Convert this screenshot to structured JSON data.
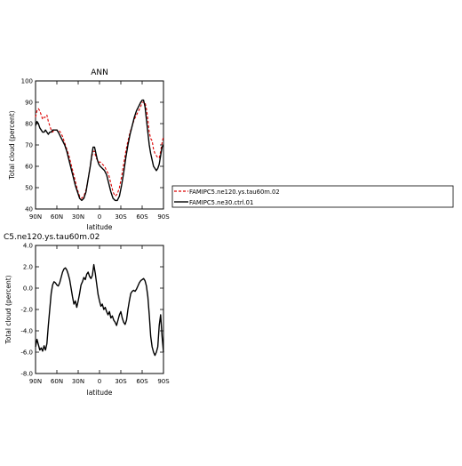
{
  "chart_data": [
    {
      "type": "line",
      "title": "ANN",
      "xlabel": "latitude",
      "ylabel": "Total cloud (percent)",
      "xlim": [
        90,
        -90
      ],
      "ylim": [
        40,
        100
      ],
      "xtick_values": [
        90,
        60,
        30,
        0,
        -30,
        -60,
        -90
      ],
      "xtick_labels": [
        "90N",
        "60N",
        "30N",
        "0",
        "30S",
        "60S",
        "90S"
      ],
      "ytick_values": [
        40,
        50,
        60,
        70,
        80,
        90,
        100
      ],
      "ytick_labels": [
        "40",
        "50",
        "60",
        "70",
        "80",
        "90",
        "100"
      ],
      "legend_position": "right",
      "series": [
        {
          "name": "FAMIPC5.ne120.ys.tau60m.02",
          "color": "#dd0000",
          "style": "dashed",
          "x": [
            90,
            88,
            86,
            84,
            82,
            80,
            78,
            76,
            74,
            72,
            70,
            68,
            66,
            64,
            62,
            60,
            58,
            55,
            52,
            49,
            46,
            43,
            40,
            37,
            34,
            31,
            28,
            25,
            22,
            19,
            16,
            13,
            11,
            9,
            7,
            5,
            3,
            1,
            -1,
            -4,
            -7,
            -10,
            -13,
            -16,
            -19,
            -22,
            -25,
            -28,
            -31,
            -34,
            -37,
            -40,
            -43,
            -46,
            -49,
            -52,
            -55,
            -58,
            -60,
            -62,
            -64,
            -66,
            -68,
            -70,
            -72,
            -74,
            -76,
            -78,
            -80,
            -82,
            -84,
            -86,
            -88,
            -90
          ],
          "y": [
            83,
            86,
            87,
            86,
            84,
            82,
            83,
            83,
            84,
            81,
            79,
            77,
            76,
            77,
            77,
            77,
            77,
            76,
            74,
            71,
            68,
            65,
            61,
            57,
            53,
            49,
            46,
            45,
            46,
            49,
            54,
            60,
            64,
            67,
            67,
            64,
            63,
            62,
            62,
            61,
            60,
            58,
            56,
            52,
            48,
            46,
            47,
            50,
            55,
            61,
            67,
            72,
            76,
            79,
            82,
            84,
            86,
            88,
            90,
            90,
            90,
            87,
            82,
            76,
            73,
            72,
            68,
            66,
            65,
            64,
            64,
            67,
            71,
            74
          ]
        },
        {
          "name": "FAMIPC5.ne30.ctrl.01",
          "color": "#000000",
          "style": "solid",
          "x": [
            90,
            88,
            86,
            84,
            82,
            80,
            78,
            76,
            74,
            72,
            70,
            68,
            66,
            64,
            62,
            60,
            58,
            55,
            52,
            49,
            46,
            43,
            40,
            37,
            34,
            31,
            28,
            25,
            22,
            19,
            16,
            13,
            11,
            9,
            7,
            5,
            3,
            1,
            -1,
            -4,
            -7,
            -10,
            -13,
            -16,
            -19,
            -22,
            -25,
            -28,
            -31,
            -34,
            -37,
            -40,
            -43,
            -46,
            -49,
            -52,
            -55,
            -58,
            -60,
            -62,
            -64,
            -66,
            -68,
            -70,
            -72,
            -74,
            -76,
            -78,
            -80,
            -82,
            -84,
            -86,
            -88,
            -90
          ],
          "y": [
            79,
            81,
            80,
            78,
            77,
            76,
            76,
            77,
            76,
            75,
            76,
            76,
            77,
            77,
            77,
            77,
            76,
            74,
            72,
            70,
            67,
            63,
            59,
            55,
            51,
            48,
            45,
            44,
            45,
            48,
            54,
            60,
            65,
            69,
            69,
            66,
            63,
            61,
            60,
            59,
            58,
            56,
            52,
            48,
            45,
            44,
            44,
            46,
            51,
            57,
            64,
            70,
            75,
            79,
            83,
            86,
            88,
            90,
            91,
            91,
            88,
            82,
            76,
            70,
            66,
            63,
            60,
            59,
            58,
            59,
            61,
            65,
            69,
            70
          ]
        }
      ]
    },
    {
      "type": "line",
      "title": "C5.ne120.ys.tau60m.02",
      "xlabel": "latitude",
      "ylabel": "Total cloud (percent)",
      "xlim": [
        90,
        -90
      ],
      "ylim": [
        -8,
        4
      ],
      "xtick_values": [
        90,
        60,
        30,
        0,
        -30,
        -60,
        -90
      ],
      "xtick_labels": [
        "90N",
        "60N",
        "30N",
        "0",
        "30S",
        "60S",
        "90S"
      ],
      "ytick_values": [
        -8,
        -6,
        -4,
        -2,
        0,
        2,
        4
      ],
      "ytick_labels": [
        "-8.0",
        "-6.0",
        "-4.0",
        "-2.0",
        "0.0",
        "2.0",
        "4.0"
      ],
      "series": [
        {
          "color": "#000000",
          "style": "solid",
          "x": [
            90,
            88,
            86,
            84,
            82,
            80,
            78,
            76,
            74,
            72,
            70,
            68,
            66,
            64,
            62,
            60,
            58,
            56,
            54,
            52,
            50,
            48,
            46,
            44,
            42,
            40,
            38,
            36,
            34,
            32,
            30,
            28,
            26,
            24,
            22,
            20,
            18,
            16,
            14,
            12,
            10,
            8,
            6,
            4,
            2,
            0,
            -2,
            -4,
            -6,
            -8,
            -10,
            -12,
            -14,
            -16,
            -18,
            -20,
            -22,
            -24,
            -26,
            -28,
            -30,
            -32,
            -34,
            -36,
            -38,
            -40,
            -42,
            -44,
            -46,
            -48,
            -50,
            -52,
            -54,
            -56,
            -58,
            -60,
            -62,
            -64,
            -66,
            -68,
            -70,
            -72,
            -74,
            -76,
            -78,
            -80,
            -82,
            -84,
            -86,
            -88,
            -90
          ],
          "y": [
            -5.5,
            -4.8,
            -5.3,
            -5.8,
            -5.6,
            -5.9,
            -5.4,
            -5.8,
            -5.2,
            -3.5,
            -2.0,
            -0.5,
            0.3,
            0.6,
            0.5,
            0.3,
            0.2,
            0.5,
            1.0,
            1.5,
            1.8,
            1.9,
            1.7,
            1.3,
            0.8,
            0.0,
            -0.8,
            -1.5,
            -1.2,
            -1.8,
            -1.2,
            -0.5,
            0.3,
            0.6,
            1.0,
            0.8,
            1.3,
            1.5,
            1.1,
            0.9,
            1.2,
            2.2,
            1.4,
            0.4,
            -0.6,
            -1.2,
            -1.7,
            -1.5,
            -2.0,
            -1.8,
            -2.2,
            -2.5,
            -2.2,
            -2.8,
            -2.6,
            -3.0,
            -3.2,
            -3.5,
            -3.0,
            -2.5,
            -2.2,
            -2.8,
            -3.2,
            -3.4,
            -3.0,
            -2.0,
            -1.2,
            -0.5,
            -0.3,
            -0.2,
            -0.3,
            -0.1,
            0.2,
            0.5,
            0.7,
            0.8,
            0.9,
            0.7,
            0.2,
            -0.8,
            -2.5,
            -4.5,
            -5.5,
            -6.0,
            -6.3,
            -6.0,
            -5.5,
            -3.5,
            -2.5,
            -4.5,
            -6.0
          ]
        }
      ]
    }
  ]
}
